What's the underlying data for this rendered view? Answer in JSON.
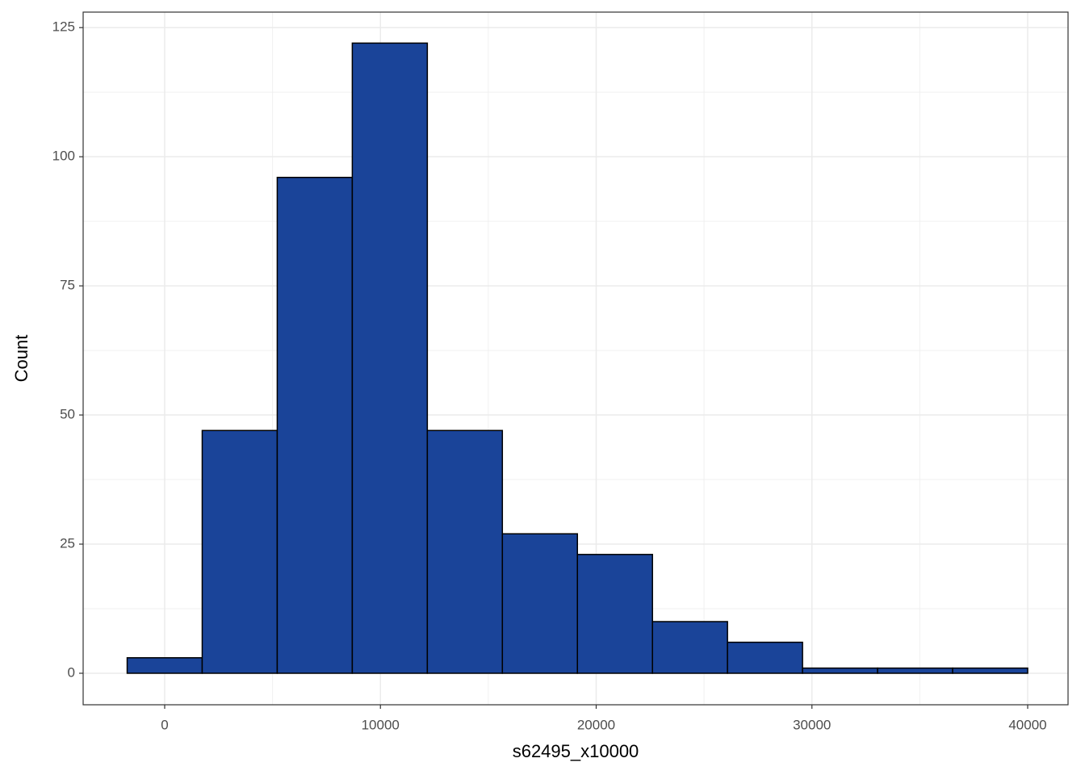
{
  "chart_data": {
    "type": "histogram",
    "xlabel": "s62495_x10000",
    "ylabel": "Count",
    "bins": [
      -1739,
      1739,
      5217,
      8696,
      12174,
      15652,
      19130,
      22609,
      26087,
      29565,
      33043,
      36522,
      40000
    ],
    "values": [
      3,
      47,
      96,
      122,
      47,
      27,
      23,
      10,
      6,
      1,
      1,
      1
    ],
    "color": "#1a4499",
    "xlim": [
      -3779,
      41871
    ],
    "ylim": [
      -6.1,
      128
    ],
    "xticks": [
      0,
      10000,
      20000,
      30000,
      40000
    ],
    "yticks": [
      0,
      25,
      50,
      75,
      100,
      125
    ],
    "grid": true
  }
}
